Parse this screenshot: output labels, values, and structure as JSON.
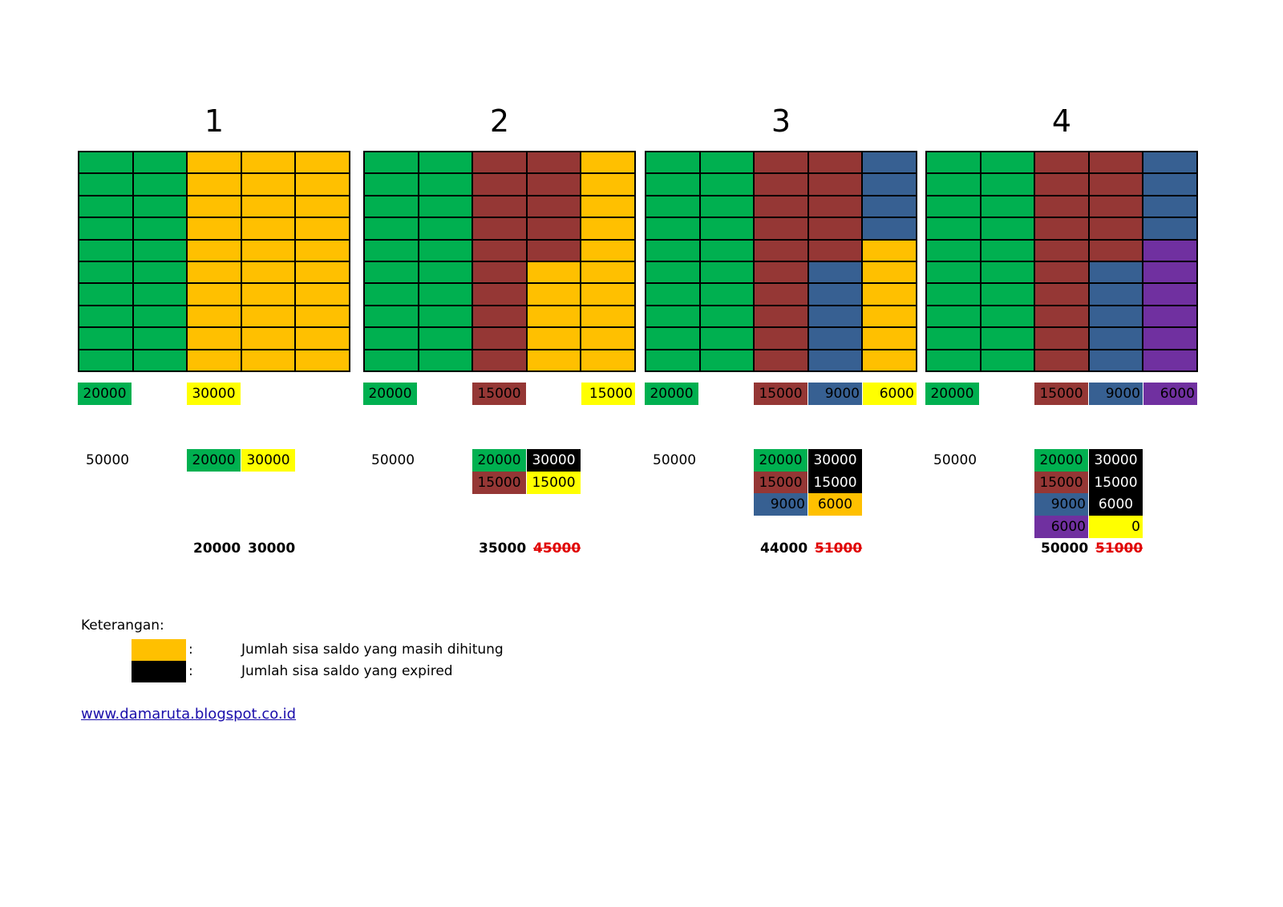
{
  "colors": {
    "green": "#00b050",
    "darkred": "#953735",
    "gold": "#ffc000",
    "yellow": "#ffff00",
    "blue": "#376092",
    "purple": "#7030a0",
    "black": "#000000"
  },
  "panels": [
    {
      "title": "1",
      "columns": [
        [
          "green",
          "green",
          "green",
          "green",
          "green",
          "green",
          "green",
          "green",
          "green",
          "green"
        ],
        [
          "green",
          "green",
          "green",
          "green",
          "green",
          "green",
          "green",
          "green",
          "green",
          "green"
        ],
        [
          "gold",
          "gold",
          "gold",
          "gold",
          "gold",
          "gold",
          "gold",
          "gold",
          "gold",
          "gold"
        ],
        [
          "gold",
          "gold",
          "gold",
          "gold",
          "gold",
          "gold",
          "gold",
          "gold",
          "gold",
          "gold"
        ],
        [
          "gold",
          "gold",
          "gold",
          "gold",
          "gold",
          "gold",
          "gold",
          "gold",
          "gold",
          "gold"
        ]
      ],
      "tags": [
        {
          "col": 0,
          "value": "20000",
          "color": "green"
        },
        {
          "col": 2,
          "value": "30000",
          "color": "yellow"
        }
      ],
      "total": "50000",
      "breakdown": [
        [
          {
            "col": 2,
            "value": "20000",
            "color": "green"
          },
          {
            "col": 3,
            "value": "30000",
            "color": "yellow"
          }
        ]
      ],
      "sum_left": "20000",
      "sum_right": "30000",
      "sum_right_struck": false
    },
    {
      "title": "2",
      "columns": [
        [
          "green",
          "green",
          "green",
          "green",
          "green",
          "green",
          "green",
          "green",
          "green",
          "green"
        ],
        [
          "green",
          "green",
          "green",
          "green",
          "green",
          "green",
          "green",
          "green",
          "green",
          "green"
        ],
        [
          "darkred",
          "darkred",
          "darkred",
          "darkred",
          "darkred",
          "darkred",
          "darkred",
          "darkred",
          "darkred",
          "darkred"
        ],
        [
          "darkred",
          "darkred",
          "darkred",
          "darkred",
          "darkred",
          "gold",
          "gold",
          "gold",
          "gold",
          "gold"
        ],
        [
          "gold",
          "gold",
          "gold",
          "gold",
          "gold",
          "gold",
          "gold",
          "gold",
          "gold",
          "gold"
        ]
      ],
      "tags": [
        {
          "col": 0,
          "value": "20000",
          "color": "green"
        },
        {
          "col": 2,
          "value": "15000",
          "color": "darkred"
        },
        {
          "col": 4,
          "value": "15000",
          "color": "yellow",
          "align": "right"
        }
      ],
      "total": "50000",
      "breakdown": [
        [
          {
            "col": 2,
            "value": "20000",
            "color": "green"
          },
          {
            "col": 3,
            "value": "30000",
            "color": "black"
          }
        ],
        [
          {
            "col": 2,
            "value": "15000",
            "color": "darkred"
          },
          {
            "col": 3,
            "value": "15000",
            "color": "yellow"
          }
        ]
      ],
      "sum_left": "35000",
      "sum_right": "45000",
      "sum_right_struck": true
    },
    {
      "title": "3",
      "columns": [
        [
          "green",
          "green",
          "green",
          "green",
          "green",
          "green",
          "green",
          "green",
          "green",
          "green"
        ],
        [
          "green",
          "green",
          "green",
          "green",
          "green",
          "green",
          "green",
          "green",
          "green",
          "green"
        ],
        [
          "darkred",
          "darkred",
          "darkred",
          "darkred",
          "darkred",
          "darkred",
          "darkred",
          "darkred",
          "darkred",
          "darkred"
        ],
        [
          "darkred",
          "darkred",
          "darkred",
          "darkred",
          "darkred",
          "blue",
          "blue",
          "blue",
          "blue",
          "blue"
        ],
        [
          "blue",
          "blue",
          "blue",
          "blue",
          "gold",
          "gold",
          "gold",
          "gold",
          "gold",
          "gold"
        ]
      ],
      "tags": [
        {
          "col": 0,
          "value": "20000",
          "color": "green"
        },
        {
          "col": 2,
          "value": "15000",
          "color": "darkred"
        },
        {
          "col": 3,
          "value": "9000",
          "color": "blue",
          "align": "right"
        },
        {
          "col": 4,
          "value": "6000",
          "color": "yellow",
          "align": "right"
        }
      ],
      "total": "50000",
      "breakdown": [
        [
          {
            "col": 2,
            "value": "20000",
            "color": "green"
          },
          {
            "col": 3,
            "value": "30000",
            "color": "black"
          }
        ],
        [
          {
            "col": 2,
            "value": "15000",
            "color": "darkred"
          },
          {
            "col": 3,
            "value": "15000",
            "color": "black"
          }
        ],
        [
          {
            "col": 2,
            "value": "9000",
            "color": "blue",
            "align": "right"
          },
          {
            "col": 3,
            "value": "6000",
            "color": "gold"
          }
        ]
      ],
      "sum_left": "44000",
      "sum_right": "51000",
      "sum_right_struck": true
    },
    {
      "title": "4",
      "columns": [
        [
          "green",
          "green",
          "green",
          "green",
          "green",
          "green",
          "green",
          "green",
          "green",
          "green"
        ],
        [
          "green",
          "green",
          "green",
          "green",
          "green",
          "green",
          "green",
          "green",
          "green",
          "green"
        ],
        [
          "darkred",
          "darkred",
          "darkred",
          "darkred",
          "darkred",
          "darkred",
          "darkred",
          "darkred",
          "darkred",
          "darkred"
        ],
        [
          "darkred",
          "darkred",
          "darkred",
          "darkred",
          "darkred",
          "blue",
          "blue",
          "blue",
          "blue",
          "blue"
        ],
        [
          "blue",
          "blue",
          "blue",
          "blue",
          "purple",
          "purple",
          "purple",
          "purple",
          "purple",
          "purple"
        ]
      ],
      "tags": [
        {
          "col": 0,
          "value": "20000",
          "color": "green"
        },
        {
          "col": 2,
          "value": "15000",
          "color": "darkred"
        },
        {
          "col": 3,
          "value": "9000",
          "color": "blue",
          "align": "right"
        },
        {
          "col": 4,
          "value": "6000",
          "color": "purple",
          "align": "right"
        }
      ],
      "total": "50000",
      "breakdown": [
        [
          {
            "col": 2,
            "value": "20000",
            "color": "green"
          },
          {
            "col": 3,
            "value": "30000",
            "color": "black"
          }
        ],
        [
          {
            "col": 2,
            "value": "15000",
            "color": "darkred"
          },
          {
            "col": 3,
            "value": "15000",
            "color": "black"
          }
        ],
        [
          {
            "col": 2,
            "value": "9000",
            "color": "blue",
            "align": "right"
          },
          {
            "col": 3,
            "value": "6000",
            "color": "black"
          }
        ],
        [
          {
            "col": 2,
            "value": "6000",
            "color": "purple",
            "align": "right"
          },
          {
            "col": 3,
            "value": "0",
            "color": "yellow",
            "align": "right"
          }
        ]
      ],
      "sum_left": "50000",
      "sum_right": "51000",
      "sum_right_struck": true
    }
  ],
  "legend": {
    "title": "Keterangan:",
    "items": [
      {
        "color": "gold",
        "colon": ":",
        "text": "Jumlah sisa saldo yang masih dihitung"
      },
      {
        "color": "black",
        "colon": ":",
        "text": "Jumlah sisa saldo yang expired"
      }
    ]
  },
  "footer": {
    "link": "www.damaruta.blogspot.co.id"
  }
}
